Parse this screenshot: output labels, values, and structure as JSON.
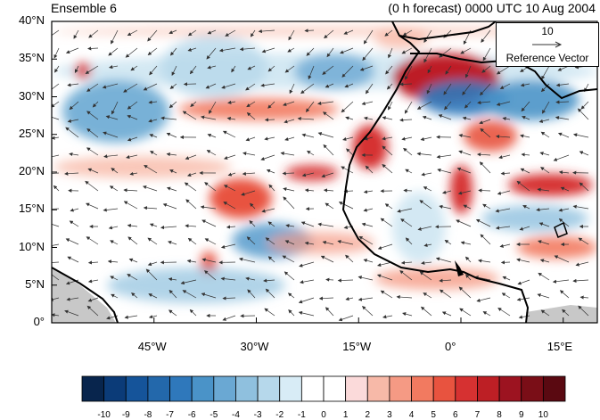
{
  "title_left": "Ensemble 6",
  "title_right": "(0 h forecast) 0000 UTC 10 Aug 2004",
  "lat_labels": [
    "40°N",
    "35°N",
    "30°N",
    "25°N",
    "20°N",
    "15°N",
    "10°N",
    "5°N",
    "0°"
  ],
  "lon_labels": [
    "45°W",
    "30°W",
    "15°W",
    "0°",
    "15°E"
  ],
  "reference_vector": {
    "magnitude": "10",
    "label": "Reference Vector"
  },
  "colorbar": {
    "labels": [
      "-10",
      "-9",
      "-8",
      "-7",
      "-6",
      "-5",
      "-4",
      "-3",
      "-2",
      "-1",
      "0",
      "1",
      "2",
      "3",
      "4",
      "5",
      "6",
      "7",
      "8",
      "9",
      "10"
    ],
    "colors": [
      "#08254d",
      "#0b3b78",
      "#15549a",
      "#2368ab",
      "#2f78bb",
      "#4a93c8",
      "#6aa8d3",
      "#8fc0de",
      "#b6d8eb",
      "#d8ecf6",
      "#ffffff",
      "#ffffff",
      "#fbdada",
      "#f7b9a8",
      "#f59a84",
      "#f27a60",
      "#e8533f",
      "#d63131",
      "#bd1f25",
      "#9c1320",
      "#7a0e17",
      "#5a0911"
    ]
  },
  "map": {
    "lat_range": [
      0,
      40
    ],
    "lon_range": [
      -60,
      20
    ],
    "field": "vorticity anomaly with wind vectors",
    "colors": {
      "land_mask": "#c8c8c8",
      "coastline": "#000000",
      "vector": "#333333"
    }
  }
}
